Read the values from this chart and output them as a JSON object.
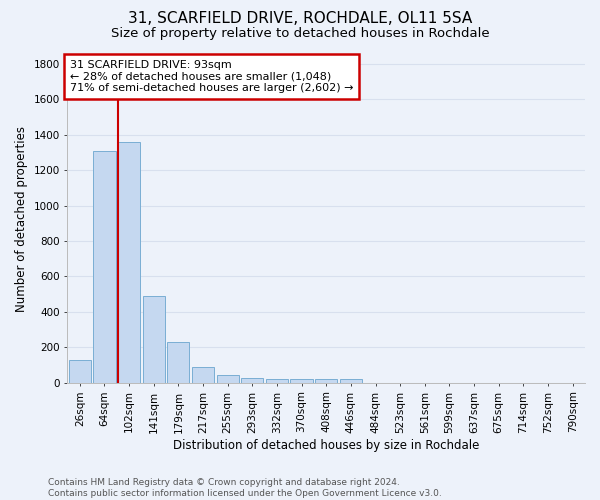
{
  "title1": "31, SCARFIELD DRIVE, ROCHDALE, OL11 5SA",
  "title2": "Size of property relative to detached houses in Rochdale",
  "xlabel": "Distribution of detached houses by size in Rochdale",
  "ylabel": "Number of detached properties",
  "categories": [
    "26sqm",
    "64sqm",
    "102sqm",
    "141sqm",
    "179sqm",
    "217sqm",
    "255sqm",
    "293sqm",
    "332sqm",
    "370sqm",
    "408sqm",
    "446sqm",
    "484sqm",
    "523sqm",
    "561sqm",
    "599sqm",
    "637sqm",
    "675sqm",
    "714sqm",
    "752sqm",
    "790sqm"
  ],
  "values": [
    130,
    1310,
    1360,
    490,
    230,
    90,
    45,
    25,
    20,
    20,
    20,
    20,
    0,
    0,
    0,
    0,
    0,
    0,
    0,
    0,
    0
  ],
  "bar_color": "#c5d8f0",
  "bar_edge_color": "#7aaed4",
  "background_color": "#edf2fa",
  "grid_color": "#d8e0ee",
  "red_line_color": "#cc0000",
  "red_line_index": 2,
  "annotation_title": "31 SCARFIELD DRIVE: 93sqm",
  "annotation_line1": "← 28% of detached houses are smaller (1,048)",
  "annotation_line2": "71% of semi-detached houses are larger (2,602) →",
  "annotation_box_color": "#ffffff",
  "annotation_border_color": "#cc0000",
  "ylim": [
    0,
    1850
  ],
  "yticks": [
    0,
    200,
    400,
    600,
    800,
    1000,
    1200,
    1400,
    1600,
    1800
  ],
  "footer_line1": "Contains HM Land Registry data © Crown copyright and database right 2024.",
  "footer_line2": "Contains public sector information licensed under the Open Government Licence v3.0.",
  "title1_fontsize": 11,
  "title2_fontsize": 9.5,
  "xlabel_fontsize": 8.5,
  "ylabel_fontsize": 8.5,
  "tick_fontsize": 7.5,
  "annotation_fontsize": 8,
  "footer_fontsize": 6.5
}
